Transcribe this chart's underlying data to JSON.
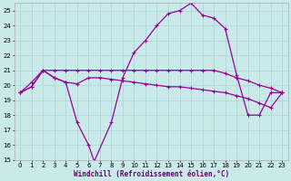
{
  "bg_color": "#caeaea",
  "line_color": "#990099",
  "grid_color": "#aad4d4",
  "xlabel": "Windchill (Refroidissement éolien,°C)",
  "ylim": [
    15,
    25.5
  ],
  "xlim": [
    -0.5,
    23.5
  ],
  "yticks": [
    15,
    16,
    17,
    18,
    19,
    20,
    21,
    22,
    23,
    24,
    25
  ],
  "xticks": [
    0,
    1,
    2,
    3,
    4,
    5,
    6,
    7,
    8,
    9,
    10,
    11,
    12,
    13,
    14,
    15,
    16,
    17,
    18,
    19,
    20,
    21,
    22,
    23
  ],
  "line1_x": [
    0,
    1,
    2,
    3,
    4,
    5,
    6,
    6.5,
    8,
    9,
    10,
    11,
    12,
    13,
    14,
    15,
    16,
    17,
    18,
    19,
    20,
    21,
    22,
    23
  ],
  "line1_y": [
    19.5,
    19.9,
    21.0,
    20.5,
    20.2,
    17.5,
    16.0,
    14.9,
    17.5,
    20.5,
    22.2,
    23.0,
    24.0,
    24.8,
    25.0,
    25.5,
    24.7,
    24.5,
    23.8,
    20.7,
    18.0,
    18.0,
    19.5,
    19.5
  ],
  "line2_x": [
    0,
    1,
    2,
    3,
    4,
    5,
    6,
    7,
    8,
    9,
    10,
    11,
    12,
    13,
    14,
    15,
    16,
    17,
    18,
    19,
    20,
    21,
    22,
    23
  ],
  "line2_y": [
    19.5,
    19.9,
    21.0,
    21.0,
    21.0,
    21.0,
    21.0,
    21.0,
    21.0,
    21.0,
    21.0,
    21.0,
    21.0,
    21.0,
    21.0,
    21.0,
    21.0,
    21.0,
    20.8,
    20.5,
    20.3,
    20.0,
    19.8,
    19.5
  ],
  "line3_x": [
    0,
    1,
    2,
    3,
    4,
    5,
    6,
    7,
    8,
    9,
    10,
    11,
    12,
    13,
    14,
    15,
    16,
    17,
    18,
    19,
    20,
    21,
    22,
    23
  ],
  "line3_y": [
    19.5,
    20.2,
    21.0,
    20.5,
    20.2,
    20.1,
    20.5,
    20.5,
    20.4,
    20.3,
    20.2,
    20.1,
    20.0,
    19.9,
    19.9,
    19.8,
    19.7,
    19.6,
    19.5,
    19.3,
    19.1,
    18.8,
    18.5,
    19.5
  ],
  "markersize": 3,
  "linewidth": 0.9
}
